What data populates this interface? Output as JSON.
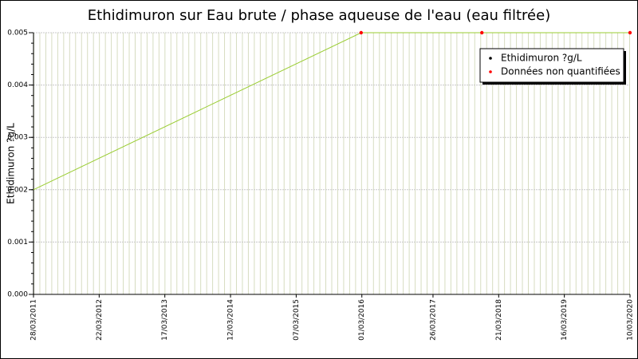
{
  "chart_data": {
    "type": "line",
    "title": "Ethidimuron sur Eau brute / phase aqueuse de l'eau (eau filtrée)",
    "y_label": "Ethidimuron ?g/L",
    "x": [
      "28/03/2011",
      "26/02/2016",
      "19/12/2017",
      "10/03/2020"
    ],
    "series": [
      {
        "name": "Ethidimuron ?g/L",
        "color": "#9acd32",
        "marker_color": "#000000",
        "values": [
          0.002,
          0.005,
          0.005,
          0.005
        ]
      },
      {
        "name": "Données non quantifiées",
        "color": "#ff0000",
        "values": [
          null,
          0.005,
          0.005,
          0.005
        ]
      }
    ],
    "xlim": [
      "28/03/2011",
      "10/03/2020"
    ],
    "xticks": [
      "28/03/2011",
      "22/03/2012",
      "17/03/2013",
      "12/03/2014",
      "07/03/2015",
      "01/03/2016",
      "26/03/2017",
      "21/03/2018",
      "16/03/2019",
      "10/03/2020"
    ],
    "ylim": [
      0,
      0.005
    ],
    "yticks": [
      {
        "value": 0,
        "label": "0.000"
      },
      0.001,
      0.002,
      0.003,
      0.004,
      0.005
    ],
    "grid": true,
    "legend": "top-right"
  }
}
